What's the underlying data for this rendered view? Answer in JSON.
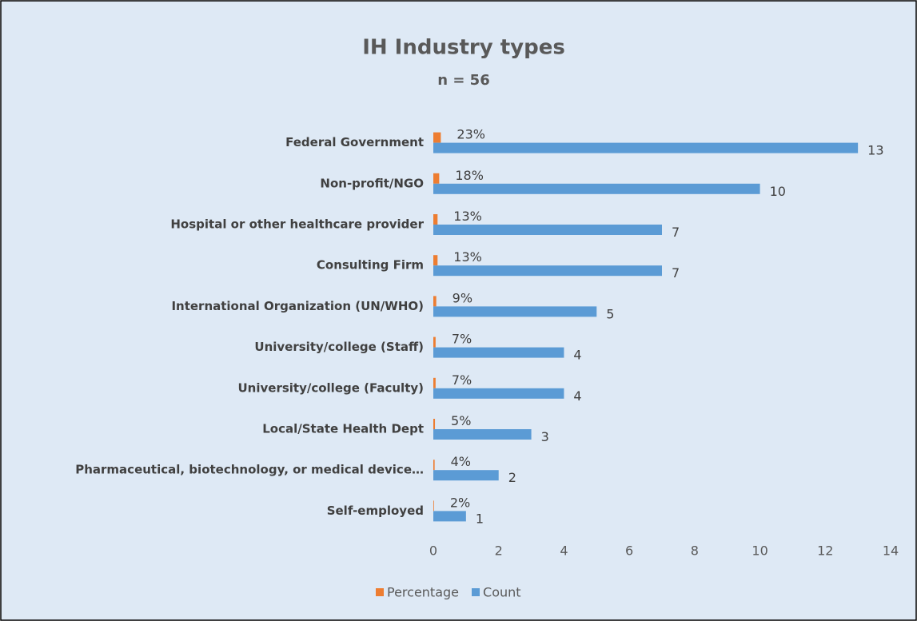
{
  "chart_data": {
    "type": "barh",
    "title": "IH Industry types",
    "subtitle": "n = 56",
    "categories": [
      "Federal Government",
      "Non-profit/NGO",
      "Hospital or other healthcare provider",
      "Consulting Firm",
      "International Organization (UN/WHO)",
      "University/college (Staff)",
      "University/college (Faculty)",
      "Local/State Health Dept",
      "Pharmaceutical, biotechnology, or medical device…",
      "Self-employed"
    ],
    "series": [
      {
        "name": "Percentage",
        "color": "#ed7d31",
        "values": [
          0.23,
          0.18,
          0.13,
          0.13,
          0.09,
          0.07,
          0.07,
          0.05,
          0.04,
          0.02
        ],
        "value_labels": [
          "23%",
          "18%",
          "13%",
          "13%",
          "9%",
          "7%",
          "7%",
          "5%",
          "4%",
          "2%"
        ]
      },
      {
        "name": "Count",
        "color": "#5b9bd5",
        "values": [
          13,
          10,
          7,
          7,
          5,
          4,
          4,
          3,
          2,
          1
        ]
      }
    ],
    "xlim": [
      0,
      14
    ],
    "xticks": [
      0,
      2,
      4,
      6,
      8,
      10,
      12,
      14
    ],
    "grid": false,
    "legend": "bottom"
  }
}
